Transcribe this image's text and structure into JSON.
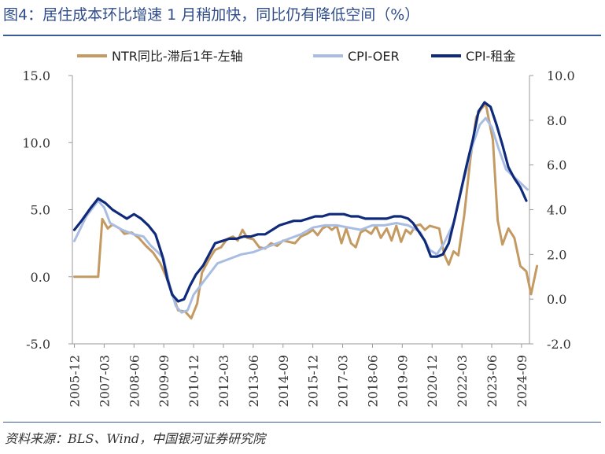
{
  "title": "图4：居住成本环比增速 1 月稍加快，同比仍有降低空间（%）",
  "source": "资料来源：BLS、Wind，中国银河证券研究院",
  "chart_data": {
    "type": "line",
    "x_tick_labels": [
      "2005-12",
      "2007-03",
      "2008-06",
      "2009-09",
      "2010-12",
      "2012-03",
      "2013-06",
      "2014-09",
      "2015-12",
      "2017-03",
      "2018-06",
      "2019-09",
      "2020-12",
      "2022-03",
      "2023-06",
      "2024-09"
    ],
    "x_range": [
      2005.9167,
      2025.0833
    ],
    "y_left": {
      "range": [
        -5,
        15
      ],
      "ticks": [
        "-5.0",
        "0.0",
        "5.0",
        "10.0",
        "15.0"
      ]
    },
    "y_right": {
      "range": [
        -2,
        10
      ],
      "ticks": [
        "-2.0",
        "0.0",
        "2.0",
        "4.0",
        "6.0",
        "8.0",
        "10.0"
      ]
    },
    "legend_position": "top",
    "grid": false,
    "series": [
      {
        "name": "NTR同比-滞后1年-左轴",
        "axis": "left",
        "color": "#c49a63",
        "points": [
          [
            2006.0,
            0.0
          ],
          [
            2006.5,
            0.0
          ],
          [
            2007.0,
            0.0
          ],
          [
            2007.17,
            4.3
          ],
          [
            2007.4,
            3.6
          ],
          [
            2007.6,
            3.9
          ],
          [
            2007.9,
            3.6
          ],
          [
            2008.1,
            3.2
          ],
          [
            2008.4,
            3.3
          ],
          [
            2008.7,
            2.9
          ],
          [
            2009.0,
            2.3
          ],
          [
            2009.3,
            1.8
          ],
          [
            2009.6,
            1.0
          ],
          [
            2009.85,
            0.0
          ],
          [
            2010.1,
            -1.2
          ],
          [
            2010.35,
            -2.5
          ],
          [
            2010.65,
            -2.6
          ],
          [
            2010.9,
            -3.1
          ],
          [
            2011.15,
            -2.0
          ],
          [
            2011.35,
            0.3
          ],
          [
            2011.65,
            1.3
          ],
          [
            2011.9,
            2.0
          ],
          [
            2012.15,
            2.2
          ],
          [
            2012.4,
            2.8
          ],
          [
            2012.65,
            3.0
          ],
          [
            2012.85,
            2.7
          ],
          [
            2013.05,
            3.5
          ],
          [
            2013.25,
            2.9
          ],
          [
            2013.5,
            2.8
          ],
          [
            2013.75,
            2.2
          ],
          [
            2014.0,
            2.1
          ],
          [
            2014.25,
            2.5
          ],
          [
            2014.5,
            2.3
          ],
          [
            2014.75,
            2.7
          ],
          [
            2015.0,
            2.6
          ],
          [
            2015.25,
            2.5
          ],
          [
            2015.5,
            3.0
          ],
          [
            2015.75,
            3.2
          ],
          [
            2016.0,
            3.5
          ],
          [
            2016.2,
            3.1
          ],
          [
            2016.4,
            3.6
          ],
          [
            2016.6,
            3.8
          ],
          [
            2016.8,
            3.5
          ],
          [
            2017.0,
            3.8
          ],
          [
            2017.2,
            2.5
          ],
          [
            2017.4,
            3.6
          ],
          [
            2017.6,
            2.5
          ],
          [
            2017.8,
            2.2
          ],
          [
            2018.0,
            3.3
          ],
          [
            2018.2,
            3.5
          ],
          [
            2018.45,
            3.2
          ],
          [
            2018.65,
            3.8
          ],
          [
            2018.85,
            2.9
          ],
          [
            2019.1,
            3.6
          ],
          [
            2019.3,
            2.7
          ],
          [
            2019.5,
            3.8
          ],
          [
            2019.7,
            2.6
          ],
          [
            2019.9,
            3.5
          ],
          [
            2020.1,
            3.2
          ],
          [
            2020.3,
            3.8
          ],
          [
            2020.5,
            3.9
          ],
          [
            2020.7,
            3.5
          ],
          [
            2020.9,
            3.8
          ],
          [
            2021.1,
            3.7
          ],
          [
            2021.3,
            3.6
          ],
          [
            2021.5,
            1.7
          ],
          [
            2021.7,
            0.9
          ],
          [
            2021.9,
            1.9
          ],
          [
            2022.1,
            1.6
          ],
          [
            2022.35,
            4.6
          ],
          [
            2022.6,
            8.7
          ],
          [
            2022.85,
            11.9
          ],
          [
            2023.05,
            12.5
          ],
          [
            2023.25,
            12.9
          ],
          [
            2023.55,
            10.2
          ],
          [
            2023.75,
            4.2
          ],
          [
            2023.95,
            2.4
          ],
          [
            2024.2,
            3.6
          ],
          [
            2024.45,
            2.9
          ],
          [
            2024.7,
            0.8
          ],
          [
            2024.95,
            0.4
          ],
          [
            2025.15,
            -1.3
          ],
          [
            2025.4,
            0.8
          ]
        ]
      },
      {
        "name": "CPI-OER",
        "axis": "right",
        "color": "#a9bde3",
        "points": [
          [
            2006.0,
            2.6
          ],
          [
            2006.5,
            3.7
          ],
          [
            2007.0,
            4.4
          ],
          [
            2007.25,
            4.1
          ],
          [
            2007.5,
            3.4
          ],
          [
            2008.0,
            3.1
          ],
          [
            2008.5,
            2.9
          ],
          [
            2008.9,
            2.8
          ],
          [
            2009.2,
            2.4
          ],
          [
            2009.5,
            2.1
          ],
          [
            2009.75,
            1.8
          ],
          [
            2010.0,
            0.6
          ],
          [
            2010.25,
            -0.3
          ],
          [
            2010.5,
            -0.6
          ],
          [
            2010.75,
            -0.5
          ],
          [
            2011.0,
            0.2
          ],
          [
            2011.5,
            0.9
          ],
          [
            2012.0,
            1.6
          ],
          [
            2012.5,
            1.8
          ],
          [
            2013.0,
            2.0
          ],
          [
            2013.5,
            2.1
          ],
          [
            2014.0,
            2.3
          ],
          [
            2014.5,
            2.5
          ],
          [
            2015.0,
            2.7
          ],
          [
            2015.5,
            2.9
          ],
          [
            2016.0,
            3.2
          ],
          [
            2016.5,
            3.3
          ],
          [
            2017.0,
            3.3
          ],
          [
            2017.5,
            3.2
          ],
          [
            2018.0,
            3.1
          ],
          [
            2018.5,
            3.3
          ],
          [
            2019.0,
            3.3
          ],
          [
            2019.5,
            3.4
          ],
          [
            2020.0,
            3.3
          ],
          [
            2020.5,
            3.0
          ],
          [
            2020.9,
            2.2
          ],
          [
            2021.2,
            2.0
          ],
          [
            2021.5,
            2.5
          ],
          [
            2021.9,
            3.4
          ],
          [
            2022.3,
            5.2
          ],
          [
            2022.7,
            6.9
          ],
          [
            2023.0,
            7.8
          ],
          [
            2023.25,
            8.1
          ],
          [
            2023.5,
            7.7
          ],
          [
            2023.8,
            6.7
          ],
          [
            2024.1,
            5.8
          ],
          [
            2024.4,
            5.5
          ],
          [
            2024.7,
            5.2
          ],
          [
            2025.0,
            4.9
          ]
        ]
      },
      {
        "name": "CPI-租金",
        "axis": "right",
        "color": "#0f2a7a",
        "points": [
          [
            2006.0,
            3.1
          ],
          [
            2006.3,
            3.5
          ],
          [
            2006.7,
            4.1
          ],
          [
            2007.0,
            4.5
          ],
          [
            2007.3,
            4.3
          ],
          [
            2007.6,
            4.0
          ],
          [
            2007.9,
            3.8
          ],
          [
            2008.2,
            3.6
          ],
          [
            2008.5,
            3.8
          ],
          [
            2008.8,
            3.6
          ],
          [
            2009.1,
            3.3
          ],
          [
            2009.4,
            2.9
          ],
          [
            2009.7,
            1.9
          ],
          [
            2009.9,
            0.9
          ],
          [
            2010.1,
            0.2
          ],
          [
            2010.35,
            -0.1
          ],
          [
            2010.6,
            0.0
          ],
          [
            2010.85,
            0.6
          ],
          [
            2011.1,
            1.1
          ],
          [
            2011.4,
            1.5
          ],
          [
            2011.65,
            2.0
          ],
          [
            2011.9,
            2.5
          ],
          [
            2012.2,
            2.6
          ],
          [
            2012.5,
            2.7
          ],
          [
            2012.8,
            2.7
          ],
          [
            2013.1,
            2.8
          ],
          [
            2013.4,
            2.8
          ],
          [
            2013.7,
            2.9
          ],
          [
            2014.0,
            2.9
          ],
          [
            2014.3,
            3.1
          ],
          [
            2014.6,
            3.3
          ],
          [
            2014.9,
            3.4
          ],
          [
            2015.2,
            3.5
          ],
          [
            2015.5,
            3.5
          ],
          [
            2015.8,
            3.6
          ],
          [
            2016.1,
            3.7
          ],
          [
            2016.4,
            3.7
          ],
          [
            2016.7,
            3.8
          ],
          [
            2017.0,
            3.8
          ],
          [
            2017.3,
            3.8
          ],
          [
            2017.6,
            3.7
          ],
          [
            2017.9,
            3.7
          ],
          [
            2018.2,
            3.6
          ],
          [
            2018.5,
            3.6
          ],
          [
            2018.8,
            3.6
          ],
          [
            2019.1,
            3.6
          ],
          [
            2019.4,
            3.7
          ],
          [
            2019.7,
            3.7
          ],
          [
            2020.0,
            3.6
          ],
          [
            2020.2,
            3.4
          ],
          [
            2020.45,
            3.0
          ],
          [
            2020.7,
            2.6
          ],
          [
            2020.95,
            1.9
          ],
          [
            2021.2,
            1.9
          ],
          [
            2021.45,
            2.0
          ],
          [
            2021.7,
            2.5
          ],
          [
            2021.95,
            3.6
          ],
          [
            2022.2,
            4.8
          ],
          [
            2022.45,
            6.0
          ],
          [
            2022.7,
            7.1
          ],
          [
            2022.95,
            8.4
          ],
          [
            2023.2,
            8.8
          ],
          [
            2023.45,
            8.6
          ],
          [
            2023.7,
            7.8
          ],
          [
            2023.95,
            6.9
          ],
          [
            2024.2,
            5.9
          ],
          [
            2024.45,
            5.4
          ],
          [
            2024.7,
            5.0
          ],
          [
            2024.95,
            4.4
          ]
        ]
      }
    ]
  }
}
